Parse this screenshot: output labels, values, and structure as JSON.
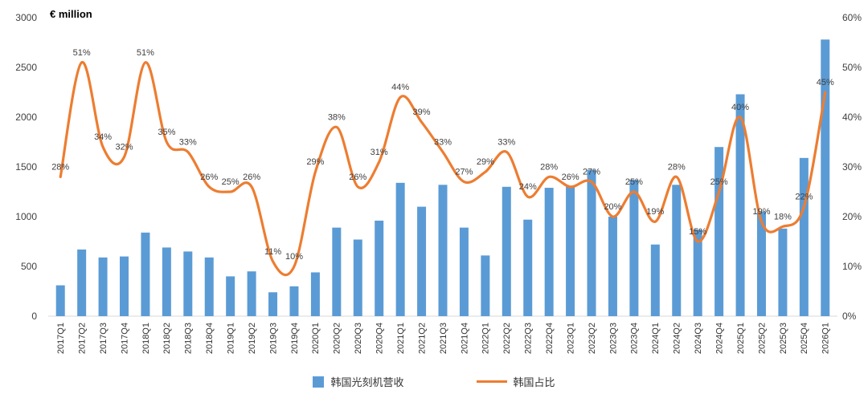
{
  "chart_data": {
    "type": "combo",
    "title": "",
    "ylabel_left": "€ million",
    "grid": false,
    "legend_position": "bottom",
    "left_axis": {
      "min": 0,
      "max": 3000,
      "ticks": [
        0,
        500,
        1000,
        1500,
        2000,
        2500,
        3000
      ]
    },
    "right_axis": {
      "min": 0,
      "max": 60,
      "ticks": [
        0,
        10,
        20,
        30,
        40,
        50,
        60
      ],
      "tick_suffix": "%"
    },
    "categories": [
      "2017Q1",
      "2017Q2",
      "2017Q3",
      "2017Q4",
      "2018Q1",
      "2018Q2",
      "2018Q3",
      "2018Q4",
      "2019Q1",
      "2019Q2",
      "2019Q3",
      "2019Q4",
      "2020Q1",
      "2020Q2",
      "2020Q3",
      "2020Q4",
      "2021Q1",
      "2021Q2",
      "2021Q3",
      "2021Q4",
      "2022Q1",
      "2022Q2",
      "2022Q3",
      "2022Q4",
      "2023Q1",
      "2023Q2",
      "2023Q3",
      "2023Q4",
      "2024Q1",
      "2024Q2",
      "2024Q3",
      "2024Q4",
      "2025Q1",
      "2025Q2",
      "2025Q3",
      "2025Q4",
      "2026Q1"
    ],
    "series": [
      {
        "name": "韩国光刻机营收",
        "type": "bar",
        "axis": "left",
        "color": "#5B9BD5",
        "values": [
          310,
          670,
          590,
          600,
          840,
          690,
          650,
          590,
          400,
          450,
          240,
          300,
          440,
          890,
          770,
          960,
          1340,
          1100,
          1320,
          890,
          610,
          1300,
          970,
          1290,
          1310,
          1470,
          1000,
          1370,
          720,
          1320,
          870,
          1700,
          2230,
          1050,
          880,
          1590,
          2780
        ]
      },
      {
        "name": "韩国占比",
        "type": "line",
        "axis": "right",
        "color": "#ED7D31",
        "values": [
          28,
          51,
          34,
          32,
          51,
          35,
          33,
          26,
          25,
          26,
          11,
          10,
          29,
          38,
          26,
          31,
          44,
          39,
          33,
          27,
          29,
          33,
          24,
          28,
          26,
          27,
          20,
          25,
          19,
          28,
          15,
          25,
          40,
          19,
          18,
          22,
          45
        ],
        "label_suffix": "%"
      }
    ]
  }
}
